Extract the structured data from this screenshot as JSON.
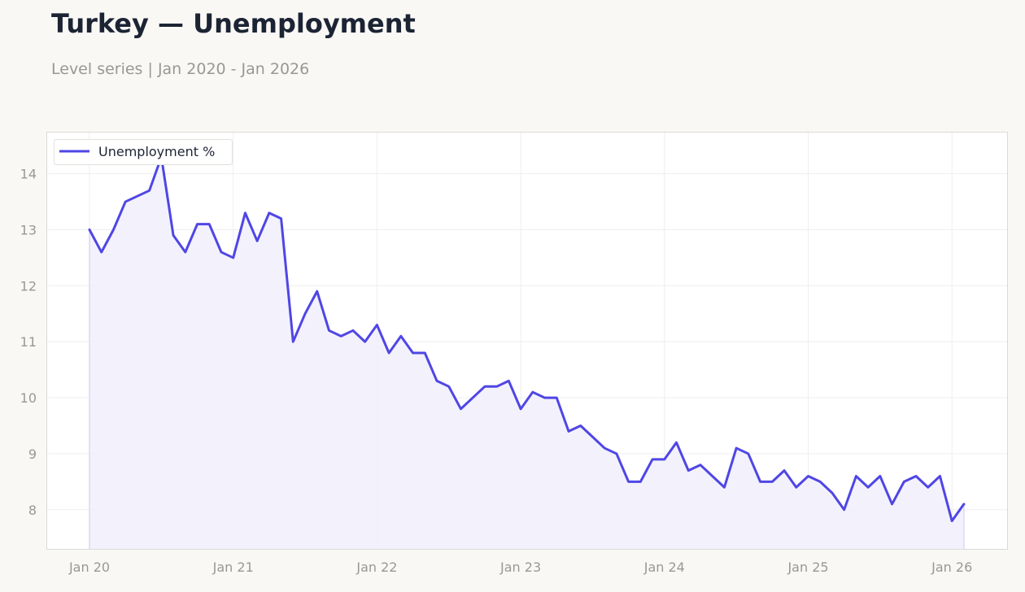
{
  "title": "Turkey — Unemployment",
  "subtitle": "Level series | Jan 2020 - Jan 2026",
  "chart_data": {
    "type": "area",
    "series": [
      {
        "name": "Unemployment %",
        "color": "#4f46e5",
        "fill": "#f1eefc",
        "values": [
          13.0,
          12.6,
          13.0,
          13.5,
          13.6,
          13.7,
          14.3,
          12.9,
          12.6,
          13.1,
          13.1,
          12.6,
          12.5,
          13.3,
          12.8,
          13.3,
          13.2,
          11.0,
          11.5,
          11.9,
          11.2,
          11.1,
          11.2,
          11.0,
          11.3,
          10.8,
          11.1,
          10.8,
          10.8,
          10.3,
          10.2,
          9.8,
          10.0,
          10.2,
          10.2,
          10.3,
          9.8,
          10.1,
          10.0,
          10.0,
          9.4,
          9.5,
          9.3,
          9.1,
          9.0,
          8.5,
          8.5,
          8.9,
          8.9,
          9.2,
          8.7,
          8.8,
          8.6,
          8.4,
          9.1,
          9.0,
          8.5,
          8.5,
          8.7,
          8.4,
          8.6,
          8.5,
          8.3,
          8.0,
          8.6,
          8.4,
          8.6,
          8.1,
          8.5,
          8.6,
          8.4,
          8.6,
          7.8,
          8.1
        ]
      }
    ],
    "x_start": "2020-01",
    "x_ticks": [
      "Jan 20",
      "Jan 21",
      "Jan 22",
      "Jan 23",
      "Jan 24",
      "Jan 25",
      "Jan 26"
    ],
    "y_ticks": [
      8,
      9,
      10,
      11,
      12,
      13,
      14
    ],
    "ylim": [
      7.3,
      14.75
    ],
    "grid": true,
    "legend": "top-left"
  }
}
